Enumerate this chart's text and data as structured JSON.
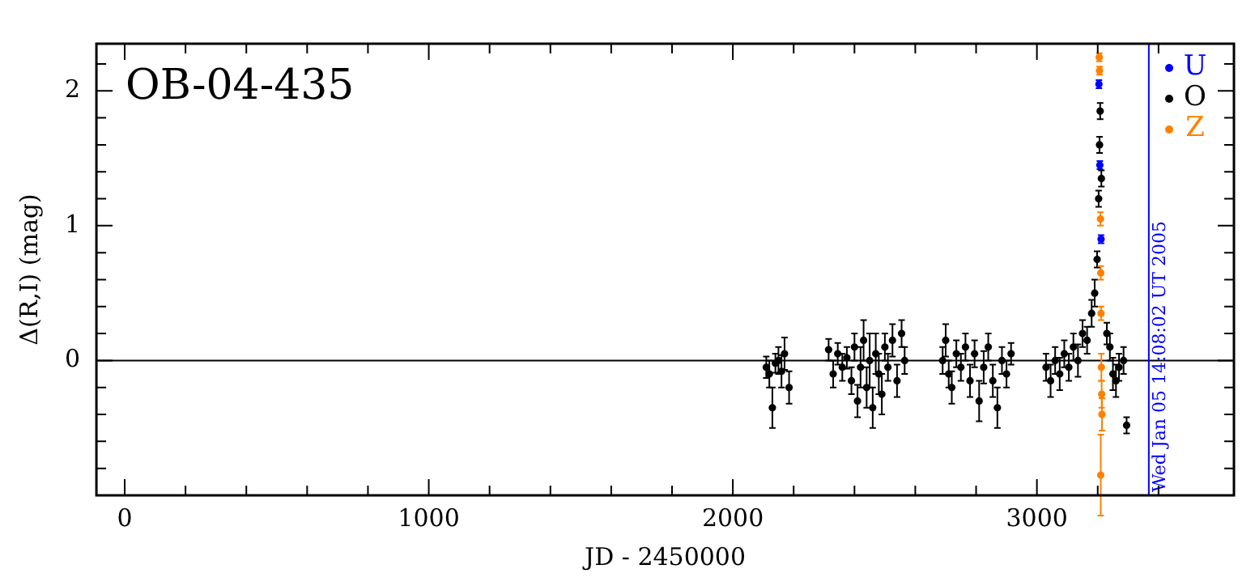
{
  "chart_data": {
    "type": "scatter",
    "title": "OB-04-435",
    "xlabel": "JD - 2450000",
    "ylabel": "Δ(R,I) (mag)",
    "xlim": [
      -93,
      3648
    ],
    "ylim": [
      -1,
      2.35
    ],
    "xticks": [
      0,
      {
        "value": 200,
        "label": null
      },
      {
        "value": 400,
        "label": null
      },
      {
        "value": 600,
        "label": null
      },
      {
        "value": 800,
        "label": null
      },
      1000,
      {
        "value": 1200,
        "label": null
      },
      {
        "value": 1400,
        "label": null
      },
      {
        "value": 1600,
        "label": null
      },
      {
        "value": 1800,
        "label": null
      },
      2000,
      {
        "value": 2200,
        "label": null
      },
      {
        "value": 2400,
        "label": null
      },
      {
        "value": 2600,
        "label": null
      },
      {
        "value": 2800,
        "label": null
      },
      3000,
      {
        "value": 3200,
        "label": null
      },
      {
        "value": 3400,
        "label": null
      }
    ],
    "yticks": [
      {
        "value": -0.8,
        "label": null
      },
      {
        "value": -0.6,
        "label": null
      },
      {
        "value": -0.4,
        "label": null
      },
      {
        "value": -0.2,
        "label": null
      },
      0,
      {
        "value": 0.2,
        "label": null
      },
      {
        "value": 0.4,
        "label": null
      },
      {
        "value": 0.6,
        "label": null
      },
      {
        "value": 0.8,
        "label": null
      },
      1,
      {
        "value": 1.2,
        "label": null
      },
      {
        "value": 1.4,
        "label": null
      },
      {
        "value": 1.6,
        "label": null
      },
      {
        "value": 1.8,
        "label": null
      },
      2,
      {
        "value": 2.2,
        "label": null
      }
    ],
    "grid": false,
    "legend": "top right",
    "marker": "circle",
    "ref_lines": [
      {
        "axis": "y",
        "value": 0,
        "color": "#000000"
      },
      {
        "axis": "x",
        "value": 3368,
        "color": "#0000ff"
      }
    ],
    "annotations": [
      "Wed Jan 05 14:08:02 UT 2005"
    ],
    "series": [
      {
        "name": "U",
        "color": "#0000ff",
        "x": [
          3204,
          3207,
          3211
        ],
        "values": [
          2.05,
          1.45,
          0.9
        ],
        "errors": [
          0.03,
          0.03,
          0.03
        ]
      },
      {
        "name": "O",
        "color": "#000000",
        "x": [
          2110,
          2120,
          2130,
          2140,
          2150,
          2160,
          2170,
          2185,
          2315,
          2330,
          2345,
          2360,
          2375,
          2390,
          2400,
          2410,
          2420,
          2430,
          2440,
          2450,
          2460,
          2470,
          2480,
          2490,
          2500,
          2510,
          2525,
          2540,
          2555,
          2565,
          2690,
          2700,
          2710,
          2720,
          2735,
          2750,
          2765,
          2780,
          2795,
          2810,
          2825,
          2840,
          2855,
          2870,
          2885,
          2900,
          2915,
          3030,
          3045,
          3060,
          3075,
          3090,
          3105,
          3120,
          3135,
          3150,
          3165,
          3180,
          3190,
          3198,
          3203,
          3206,
          3208,
          3212,
          3230,
          3240,
          3250,
          3260,
          3270,
          3285,
          3295
        ],
        "values": [
          -0.05,
          -0.1,
          -0.35,
          -0.02,
          0,
          -0.08,
          0.05,
          -0.2,
          0.08,
          -0.1,
          0.05,
          -0.05,
          0.02,
          -0.15,
          0.1,
          -0.3,
          -0.05,
          0.15,
          -0.2,
          0,
          -0.35,
          0.05,
          -0.1,
          -0.25,
          0.1,
          -0.05,
          0.15,
          -0.15,
          0.2,
          0,
          0,
          0.15,
          -0.1,
          -0.2,
          0.05,
          -0.05,
          0.1,
          -0.15,
          0.05,
          -0.3,
          -0.05,
          0.1,
          -0.15,
          -0.35,
          0,
          -0.1,
          0.05,
          -0.05,
          -0.15,
          0,
          -0.1,
          0.05,
          -0.05,
          0.1,
          0,
          0.2,
          0.15,
          0.35,
          0.5,
          0.75,
          1.2,
          1.6,
          1.85,
          1.35,
          0.2,
          0.1,
          -0.1,
          -0.15,
          -0.05,
          0,
          -0.48
        ],
        "errors": [
          0.08,
          0.1,
          0.15,
          0.07,
          0.1,
          0.12,
          0.12,
          0.12,
          0.08,
          0.1,
          0.08,
          0.1,
          0.08,
          0.1,
          0.1,
          0.12,
          0.15,
          0.15,
          0.15,
          0.2,
          0.15,
          0.15,
          0.15,
          0.15,
          0.1,
          0.1,
          0.12,
          0.12,
          0.1,
          0.1,
          0.1,
          0.12,
          0.1,
          0.12,
          0.1,
          0.1,
          0.1,
          0.12,
          0.1,
          0.15,
          0.12,
          0.1,
          0.12,
          0.15,
          0.1,
          0.1,
          0.08,
          0.1,
          0.12,
          0.1,
          0.12,
          0.1,
          0.1,
          0.1,
          0.12,
          0.1,
          0.1,
          0.1,
          0.1,
          0.06,
          0.06,
          0.06,
          0.06,
          0.06,
          0.08,
          0.1,
          0.12,
          0.12,
          0.1,
          0.1,
          0.06
        ]
      },
      {
        "name": "Z",
        "color": "#ff8000",
        "x": [
          3205,
          3206,
          3209,
          3210,
          3211,
          3212,
          3213,
          3214,
          3210
        ],
        "values": [
          2.25,
          2.15,
          1.05,
          0.65,
          0.35,
          -0.05,
          -0.25,
          -0.4,
          -0.85
        ],
        "errors": [
          0.03,
          0.03,
          0.05,
          0.05,
          0.05,
          0.1,
          0.1,
          0.12,
          0.3
        ]
      }
    ]
  }
}
